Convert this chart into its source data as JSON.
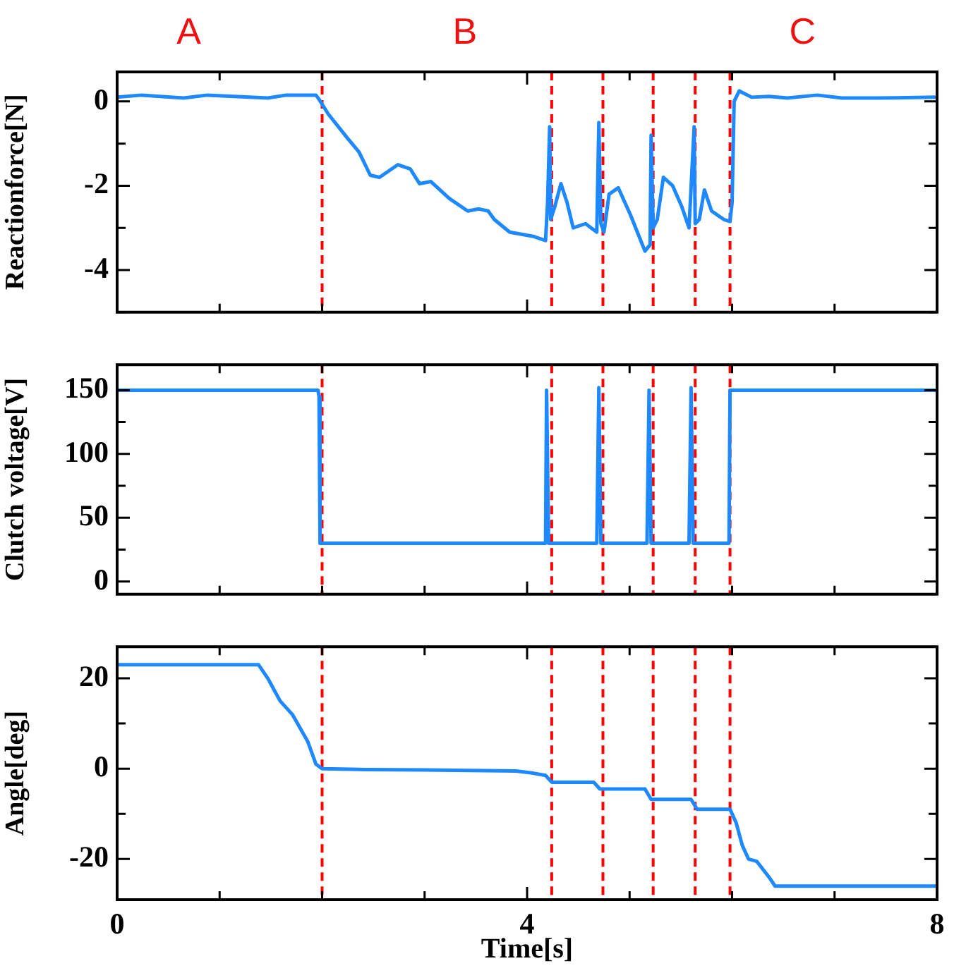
{
  "chart_data": [
    {
      "type": "line",
      "ylabel": "Reactionforce[N]",
      "annotations": [
        "A",
        "B",
        "C"
      ],
      "x": [
        0,
        0.24,
        0.65,
        0.88,
        1.47,
        1.65,
        1.94,
        1.97,
        2.06,
        2.24,
        2.36,
        2.47,
        2.56,
        2.74,
        2.86,
        2.95,
        3.06,
        3.24,
        3.42,
        3.53,
        3.62,
        3.68,
        3.83,
        4.06,
        4.18,
        4.2,
        4.22,
        4.23,
        4.27,
        4.33,
        4.39,
        4.45,
        4.57,
        4.68,
        4.7,
        4.72,
        4.75,
        4.8,
        4.89,
        5.01,
        5.15,
        5.2,
        5.21,
        5.23,
        5.27,
        5.33,
        5.42,
        5.51,
        5.58,
        5.63,
        5.64,
        5.68,
        5.73,
        5.8,
        5.92,
        5.98,
        6.0,
        6.02,
        6.07,
        6.19,
        6.36,
        6.54,
        6.83,
        7.07,
        7.42,
        8
      ],
      "series": [
        {
          "color": "#1e88ff",
          "values": [
            0.1,
            0.15,
            0.08,
            0.15,
            0.08,
            0.15,
            0.15,
            0.05,
            -0.3,
            -0.85,
            -1.2,
            -1.75,
            -1.8,
            -1.5,
            -1.6,
            -1.95,
            -1.9,
            -2.3,
            -2.6,
            -2.55,
            -2.6,
            -2.8,
            -3.1,
            -3.2,
            -3.3,
            -2.4,
            -0.6,
            -2.8,
            -2.5,
            -1.95,
            -2.4,
            -3.0,
            -2.9,
            -3.1,
            -0.5,
            -2.9,
            -3.1,
            -2.2,
            -2.05,
            -2.7,
            -3.55,
            -3.4,
            -0.8,
            -3.0,
            -2.8,
            -1.8,
            -2.0,
            -2.5,
            -3.0,
            -0.6,
            -2.9,
            -2.8,
            -2.1,
            -2.6,
            -2.8,
            -2.85,
            -2.4,
            0.0,
            0.25,
            0.1,
            0.12,
            0.08,
            0.15,
            0.08,
            0.08,
            0.1
          ]
        }
      ],
      "xlim": [
        0,
        8
      ],
      "xticks": [
        0,
        {
          "value": 1,
          "label": null
        },
        {
          "value": 2,
          "label": null
        },
        {
          "value": 3,
          "label": null
        },
        4,
        {
          "value": 5,
          "label": null
        },
        {
          "value": 6,
          "label": null
        },
        {
          "value": 7,
          "label": null
        },
        8
      ],
      "ylim": [
        -5,
        0.7
      ],
      "yticks": [
        {
          "value": -5,
          "label": null
        },
        -4,
        {
          "value": -3,
          "label": null
        },
        -2,
        {
          "value": -1,
          "label": null
        },
        0
      ],
      "tick_labels": "y",
      "marker": "none",
      "line_style": "solid",
      "legend": false,
      "ref_lines": [
        {
          "axis": "x",
          "value": 2,
          "color": "#ff0000",
          "line_style": "dashed"
        },
        {
          "axis": "x",
          "value": 4.24,
          "color": "#ff0000",
          "line_style": "dashed"
        },
        {
          "axis": "x",
          "value": 4.74,
          "color": "#ff0000",
          "line_style": "dashed"
        },
        {
          "axis": "x",
          "value": 5.23,
          "color": "#ff0000",
          "line_style": "dashed"
        },
        {
          "axis": "x",
          "value": 5.64,
          "color": "#ff0000",
          "line_style": "dashed"
        },
        {
          "axis": "x",
          "value": 5.98,
          "color": "#ff0000",
          "line_style": "dashed"
        }
      ]
    },
    {
      "type": "line",
      "ylabel": "Clutch voltage[V]",
      "x": [
        0,
        1.96,
        1.97,
        1.98,
        4.18,
        4.19,
        4.21,
        4.68,
        4.7,
        4.72,
        5.17,
        5.19,
        5.21,
        5.58,
        5.6,
        5.62,
        5.97,
        5.98,
        8
      ],
      "series": [
        {
          "color": "#1e88ff",
          "values": [
            150,
            150,
            145,
            30,
            30,
            150,
            30,
            30,
            152,
            30,
            30,
            150,
            30,
            30,
            152,
            30,
            30,
            150,
            150
          ]
        }
      ],
      "xlim": [
        0,
        8
      ],
      "xticks": [
        0,
        {
          "value": 1,
          "label": null
        },
        {
          "value": 2,
          "label": null
        },
        {
          "value": 3,
          "label": null
        },
        4,
        {
          "value": 5,
          "label": null
        },
        {
          "value": 6,
          "label": null
        },
        {
          "value": 7,
          "label": null
        },
        8
      ],
      "ylim": [
        -10,
        170
      ],
      "yticks": [
        0,
        {
          "value": 25,
          "label": null
        },
        50,
        {
          "value": 75,
          "label": null
        },
        100,
        {
          "value": 125,
          "label": null
        },
        150
      ],
      "tick_labels": "y",
      "marker": "none",
      "line_style": "solid",
      "legend": false,
      "ref_lines": [
        {
          "axis": "x",
          "value": 2,
          "color": "#ff0000",
          "line_style": "dashed"
        },
        {
          "axis": "x",
          "value": 4.24,
          "color": "#ff0000",
          "line_style": "dashed"
        },
        {
          "axis": "x",
          "value": 4.74,
          "color": "#ff0000",
          "line_style": "dashed"
        },
        {
          "axis": "x",
          "value": 5.23,
          "color": "#ff0000",
          "line_style": "dashed"
        },
        {
          "axis": "x",
          "value": 5.64,
          "color": "#ff0000",
          "line_style": "dashed"
        },
        {
          "axis": "x",
          "value": 5.98,
          "color": "#ff0000",
          "line_style": "dashed"
        }
      ]
    },
    {
      "type": "line",
      "ylabel": "Angle[deg]",
      "xlabel": "Time[s]",
      "x": [
        0,
        1.38,
        1.47,
        1.59,
        1.71,
        1.86,
        1.94,
        2.0,
        2.42,
        3.0,
        3.89,
        4.06,
        4.18,
        4.24,
        4.65,
        4.71,
        5.15,
        5.21,
        5.6,
        5.66,
        5.98,
        6.04,
        6.1,
        6.16,
        6.24,
        6.36,
        6.42,
        8
      ],
      "series": [
        {
          "color": "#1e88ff",
          "values": [
            23,
            23,
            20,
            15,
            12,
            6,
            1,
            0,
            -0.2,
            -0.3,
            -0.5,
            -1,
            -1.5,
            -3,
            -3,
            -4.5,
            -4.5,
            -6.8,
            -6.8,
            -9,
            -9,
            -12,
            -17,
            -20,
            -20.5,
            -24,
            -26,
            -26
          ]
        }
      ],
      "xlim": [
        0,
        8
      ],
      "xticks": [
        0,
        {
          "value": 1,
          "label": null
        },
        {
          "value": 2,
          "label": null
        },
        {
          "value": 3,
          "label": null
        },
        4,
        {
          "value": 5,
          "label": null
        },
        {
          "value": 6,
          "label": null
        },
        {
          "value": 7,
          "label": null
        },
        8
      ],
      "ylim": [
        -29,
        27
      ],
      "yticks": [
        -20,
        {
          "value": -10,
          "label": null
        },
        0,
        {
          "value": 10,
          "label": null
        },
        20
      ],
      "marker": "none",
      "line_style": "solid",
      "legend": false,
      "ref_lines": [
        {
          "axis": "x",
          "value": 2,
          "color": "#ff0000",
          "line_style": "dashed"
        },
        {
          "axis": "x",
          "value": 4.24,
          "color": "#ff0000",
          "line_style": "dashed"
        },
        {
          "axis": "x",
          "value": 4.74,
          "color": "#ff0000",
          "line_style": "dashed"
        },
        {
          "axis": "x",
          "value": 5.23,
          "color": "#ff0000",
          "line_style": "dashed"
        },
        {
          "axis": "x",
          "value": 5.64,
          "color": "#ff0000",
          "line_style": "dashed"
        },
        {
          "axis": "x",
          "value": 5.98,
          "color": "#ff0000",
          "line_style": "dashed"
        }
      ]
    }
  ]
}
